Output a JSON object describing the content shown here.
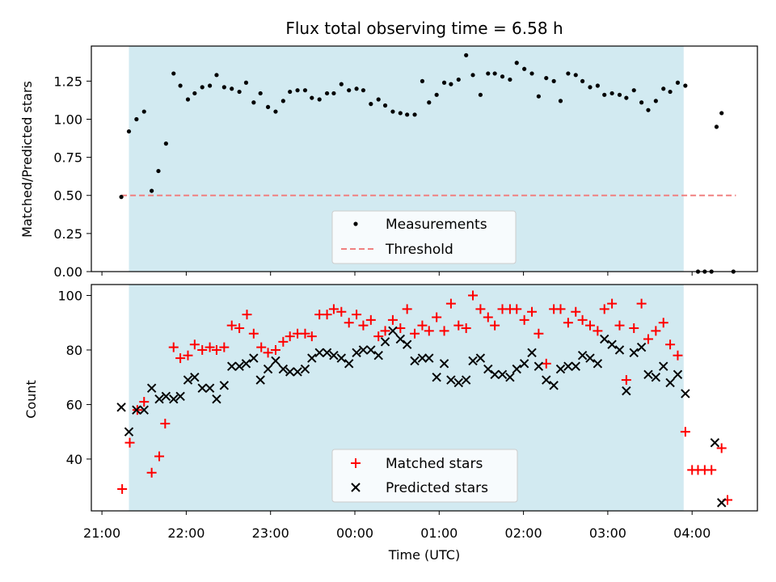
{
  "chart_data": [
    {
      "type": "scatter",
      "title": "Flux total observing time = 6.58 h",
      "ylabel": "Matched/Predicted stars",
      "xlabel": "",
      "ylim": [
        0,
        1.48
      ],
      "yticks": [
        0.0,
        0.25,
        0.5,
        0.75,
        1.0,
        1.25
      ],
      "ytick_labels": [
        "0.00",
        "0.25",
        "0.50",
        "0.75",
        "1.00",
        "1.25"
      ],
      "observing_window_hours": [
        -2.68,
        3.9
      ],
      "legend": {
        "position": "lower-center",
        "entries": [
          "Measurements",
          "Threshold"
        ]
      },
      "series": [
        {
          "name": "Measurements",
          "marker": "dot",
          "color": "#000000",
          "x": [
            -2.77,
            -2.68,
            -2.59,
            -2.5,
            -2.41,
            -2.33,
            -2.24,
            -2.15,
            -2.07,
            -1.98,
            -1.9,
            -1.81,
            -1.72,
            -1.64,
            -1.55,
            -1.46,
            -1.37,
            -1.29,
            -1.2,
            -1.12,
            -1.03,
            -0.94,
            -0.85,
            -0.77,
            -0.68,
            -0.59,
            -0.51,
            -0.42,
            -0.33,
            -0.25,
            -0.16,
            -0.07,
            0.02,
            0.1,
            0.19,
            0.28,
            0.36,
            0.45,
            0.54,
            0.62,
            0.71,
            0.8,
            0.88,
            0.97,
            1.06,
            1.14,
            1.23,
            1.32,
            1.4,
            1.49,
            1.58,
            1.66,
            1.75,
            1.84,
            1.92,
            2.01,
            2.1,
            2.18,
            2.27,
            2.36,
            2.44,
            2.53,
            2.62,
            2.7,
            2.79,
            2.88,
            2.96,
            3.05,
            3.14,
            3.22,
            3.31,
            3.4,
            3.48,
            3.57,
            3.66,
            3.74,
            3.83,
            3.92,
            4.07,
            4.15,
            4.23,
            4.29,
            4.35,
            4.49
          ],
          "y": [
            0.49,
            0.92,
            1.0,
            1.05,
            0.53,
            0.66,
            0.84,
            1.3,
            1.22,
            1.13,
            1.17,
            1.21,
            1.22,
            1.29,
            1.21,
            1.2,
            1.18,
            1.24,
            1.11,
            1.17,
            1.08,
            1.05,
            1.12,
            1.18,
            1.19,
            1.19,
            1.14,
            1.13,
            1.17,
            1.17,
            1.23,
            1.19,
            1.2,
            1.19,
            1.1,
            1.13,
            1.09,
            1.05,
            1.04,
            1.03,
            1.03,
            1.25,
            1.11,
            1.16,
            1.24,
            1.23,
            1.26,
            1.42,
            1.29,
            1.16,
            1.3,
            1.3,
            1.28,
            1.26,
            1.37,
            1.33,
            1.3,
            1.15,
            1.27,
            1.25,
            1.12,
            1.3,
            1.29,
            1.25,
            1.21,
            1.22,
            1.16,
            1.17,
            1.16,
            1.14,
            1.19,
            1.11,
            1.06,
            1.12,
            1.2,
            1.18,
            1.24,
            1.22,
            0.0,
            0.0,
            0.0,
            0.95,
            1.04,
            0.0
          ]
        },
        {
          "name": "Threshold",
          "style": "dashed",
          "color": "#f08080",
          "x": [
            -2.77,
            4.52
          ],
          "y": [
            0.5,
            0.5
          ]
        }
      ]
    },
    {
      "type": "scatter",
      "title": "",
      "ylabel": "Count",
      "xlabel": "Time (UTC)",
      "ylim": [
        21,
        104
      ],
      "yticks": [
        40,
        60,
        80,
        100
      ],
      "ytick_labels": [
        "40",
        "60",
        "80",
        "100"
      ],
      "xticks": [
        -3,
        -2,
        -1,
        0,
        1,
        2,
        3,
        4
      ],
      "xtick_labels": [
        "21:00",
        "22:00",
        "23:00",
        "00:00",
        "01:00",
        "02:00",
        "03:00",
        "04:00"
      ],
      "observing_window_hours": [
        -2.68,
        3.9
      ],
      "legend": {
        "position": "lower-center",
        "entries": [
          "Matched stars",
          "Predicted stars"
        ]
      },
      "series": [
        {
          "name": "Matched stars",
          "marker": "plus",
          "color": "#ff0000",
          "x": [
            -2.76,
            -2.67,
            -2.58,
            -2.5,
            -2.41,
            -2.32,
            -2.25,
            -2.15,
            -2.07,
            -1.98,
            -1.9,
            -1.81,
            -1.72,
            -1.64,
            -1.55,
            -1.46,
            -1.37,
            -1.28,
            -1.2,
            -1.11,
            -1.03,
            -0.94,
            -0.85,
            -0.77,
            -0.68,
            -0.59,
            -0.51,
            -0.42,
            -0.33,
            -0.25,
            -0.16,
            -0.07,
            0.02,
            0.1,
            0.19,
            0.28,
            0.36,
            0.45,
            0.54,
            0.62,
            0.71,
            0.8,
            0.88,
            0.97,
            1.06,
            1.14,
            1.23,
            1.32,
            1.4,
            1.49,
            1.58,
            1.66,
            1.75,
            1.84,
            1.92,
            2.01,
            2.1,
            2.18,
            2.27,
            2.36,
            2.44,
            2.53,
            2.62,
            2.7,
            2.79,
            2.88,
            2.96,
            3.05,
            3.14,
            3.22,
            3.31,
            3.4,
            3.48,
            3.57,
            3.66,
            3.74,
            3.83,
            3.92,
            4.0,
            4.07,
            4.15,
            4.23,
            4.35,
            4.42
          ],
          "y": [
            29,
            46,
            58,
            61,
            35,
            41,
            53,
            81,
            77,
            78,
            82,
            80,
            81,
            80,
            81,
            89,
            88,
            93,
            86,
            81,
            79,
            80,
            83,
            85,
            86,
            86,
            85,
            93,
            93,
            95,
            94,
            90,
            93,
            89,
            91,
            85,
            87,
            91,
            88,
            95,
            86,
            89,
            87,
            92,
            87,
            97,
            89,
            88,
            100,
            95,
            92,
            89,
            95,
            95,
            95,
            91,
            94,
            86,
            75,
            95,
            95,
            90,
            94,
            91,
            89,
            87,
            95,
            97,
            89,
            69,
            88,
            97,
            84,
            87,
            90,
            82,
            78,
            50,
            36,
            36,
            36,
            36,
            44,
            25
          ],
          "y_note": ""
        },
        {
          "name": "Predicted stars",
          "marker": "x",
          "color": "#000000",
          "x": [
            -2.77,
            -2.68,
            -2.59,
            -2.5,
            -2.41,
            -2.32,
            -2.24,
            -2.15,
            -2.07,
            -1.98,
            -1.9,
            -1.81,
            -1.72,
            -1.64,
            -1.55,
            -1.46,
            -1.37,
            -1.29,
            -1.2,
            -1.12,
            -1.03,
            -0.94,
            -0.85,
            -0.77,
            -0.68,
            -0.59,
            -0.51,
            -0.42,
            -0.33,
            -0.25,
            -0.16,
            -0.07,
            0.02,
            0.1,
            0.19,
            0.28,
            0.36,
            0.45,
            0.54,
            0.62,
            0.71,
            0.8,
            0.88,
            0.97,
            1.06,
            1.14,
            1.23,
            1.32,
            1.4,
            1.49,
            1.58,
            1.66,
            1.75,
            1.84,
            1.92,
            2.01,
            2.1,
            2.18,
            2.27,
            2.36,
            2.44,
            2.53,
            2.62,
            2.7,
            2.79,
            2.88,
            2.96,
            3.05,
            3.14,
            3.22,
            3.31,
            3.4,
            3.48,
            3.57,
            3.66,
            3.74,
            3.83,
            3.92,
            4.27,
            4.35
          ],
          "y": [
            59,
            50,
            58,
            58,
            66,
            62,
            63,
            62,
            63,
            69,
            70,
            66,
            66,
            62,
            67,
            74,
            74,
            75,
            77,
            69,
            73,
            76,
            73,
            72,
            72,
            73,
            77,
            79,
            79,
            78,
            77,
            75,
            79,
            80,
            80,
            78,
            83,
            87,
            84,
            82,
            76,
            77,
            77,
            70,
            75,
            69,
            68,
            69,
            76,
            77,
            73,
            71,
            71,
            70,
            73,
            75,
            79,
            74,
            69,
            67,
            73,
            74,
            74,
            78,
            77,
            75,
            84,
            82,
            80,
            65,
            79,
            81,
            71,
            70,
            74,
            68,
            71,
            64,
            46,
            24
          ]
        }
      ]
    }
  ]
}
